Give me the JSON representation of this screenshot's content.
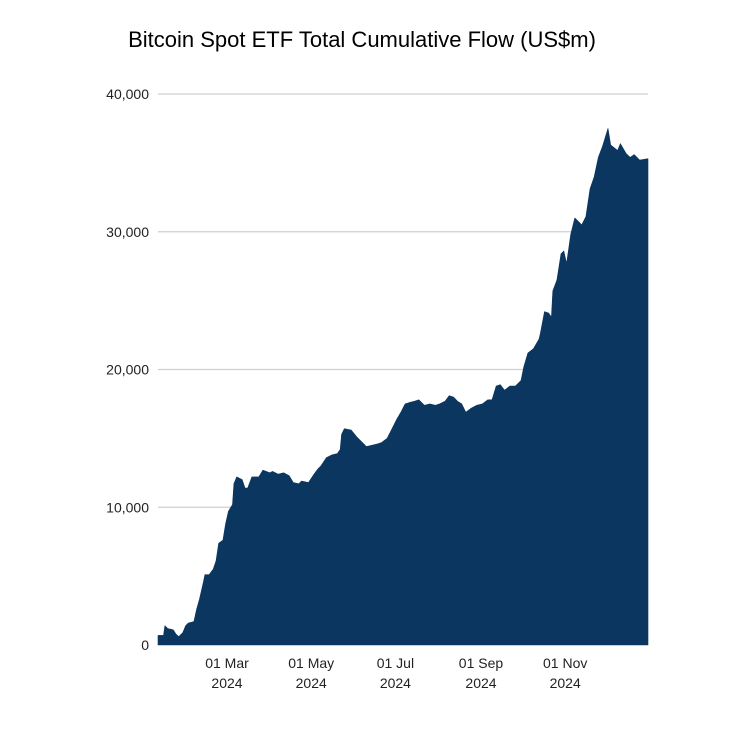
{
  "chart_data": {
    "type": "area",
    "title": "Bitcoin Spot ETF Total Cumulative Flow (US$m)",
    "xlabel": "",
    "ylabel": "",
    "ylim": [
      0,
      40000
    ],
    "xlim": [
      "2024-01-11",
      "2024-12-31"
    ],
    "y_ticks": [
      {
        "value": 0,
        "label": "0"
      },
      {
        "value": 10000,
        "label": "10,000"
      },
      {
        "value": 20000,
        "label": "20,000"
      },
      {
        "value": 30000,
        "label": "30,000"
      },
      {
        "value": 40000,
        "label": "40,000"
      }
    ],
    "x_ticks": [
      {
        "date": "2024-03-01",
        "line1": "01 Mar",
        "line2": "2024"
      },
      {
        "date": "2024-05-01",
        "line1": "01 May",
        "line2": "2024"
      },
      {
        "date": "2024-07-01",
        "line1": "01 Jul",
        "line2": "2024"
      },
      {
        "date": "2024-09-01",
        "line1": "01 Sep",
        "line2": "2024"
      },
      {
        "date": "2024-11-01",
        "line1": "01 Nov",
        "line2": "2024"
      }
    ],
    "grid": true,
    "legend": "none",
    "fill_color": "#0a3660",
    "series": [
      {
        "name": "Total Cumulative Flow",
        "points": [
          [
            "2024-01-11",
            700
          ],
          [
            "2024-01-15",
            700
          ],
          [
            "2024-01-16",
            1400
          ],
          [
            "2024-01-18",
            1200
          ],
          [
            "2024-01-22",
            1100
          ],
          [
            "2024-01-24",
            800
          ],
          [
            "2024-01-26",
            600
          ],
          [
            "2024-01-29",
            900
          ],
          [
            "2024-01-31",
            1400
          ],
          [
            "2024-02-02",
            1600
          ],
          [
            "2024-02-06",
            1700
          ],
          [
            "2024-02-08",
            2600
          ],
          [
            "2024-02-10",
            3300
          ],
          [
            "2024-02-13",
            4600
          ],
          [
            "2024-02-14",
            5100
          ],
          [
            "2024-02-17",
            5100
          ],
          [
            "2024-02-20",
            5500
          ],
          [
            "2024-02-22",
            6100
          ],
          [
            "2024-02-24",
            7400
          ],
          [
            "2024-02-27",
            7600
          ],
          [
            "2024-02-29",
            8800
          ],
          [
            "2024-03-02",
            9700
          ],
          [
            "2024-03-05",
            10200
          ],
          [
            "2024-03-06",
            11700
          ],
          [
            "2024-03-08",
            12200
          ],
          [
            "2024-03-12",
            12000
          ],
          [
            "2024-03-14",
            11400
          ],
          [
            "2024-03-16",
            11400
          ],
          [
            "2024-03-19",
            12200
          ],
          [
            "2024-03-24",
            12200
          ],
          [
            "2024-03-27",
            12700
          ],
          [
            "2024-04-01",
            12500
          ],
          [
            "2024-04-03",
            12600
          ],
          [
            "2024-04-07",
            12400
          ],
          [
            "2024-04-11",
            12500
          ],
          [
            "2024-04-15",
            12300
          ],
          [
            "2024-04-18",
            11800
          ],
          [
            "2024-04-22",
            11700
          ],
          [
            "2024-04-24",
            11900
          ],
          [
            "2024-04-29",
            11800
          ],
          [
            "2024-05-03",
            12400
          ],
          [
            "2024-05-06",
            12800
          ],
          [
            "2024-05-08",
            13000
          ],
          [
            "2024-05-12",
            13600
          ],
          [
            "2024-05-16",
            13800
          ],
          [
            "2024-05-20",
            13900
          ],
          [
            "2024-05-22",
            14200
          ],
          [
            "2024-05-23",
            15300
          ],
          [
            "2024-05-25",
            15700
          ],
          [
            "2024-05-30",
            15600
          ],
          [
            "2024-06-03",
            15100
          ],
          [
            "2024-06-07",
            14700
          ],
          [
            "2024-06-10",
            14400
          ],
          [
            "2024-06-14",
            14500
          ],
          [
            "2024-06-18",
            14600
          ],
          [
            "2024-06-21",
            14700
          ],
          [
            "2024-06-25",
            15000
          ],
          [
            "2024-06-28",
            15600
          ],
          [
            "2024-07-02",
            16400
          ],
          [
            "2024-07-05",
            16900
          ],
          [
            "2024-07-08",
            17500
          ],
          [
            "2024-07-11",
            17600
          ],
          [
            "2024-07-15",
            17700
          ],
          [
            "2024-07-18",
            17800
          ],
          [
            "2024-07-22",
            17400
          ],
          [
            "2024-07-26",
            17500
          ],
          [
            "2024-07-30",
            17400
          ],
          [
            "2024-08-02",
            17500
          ],
          [
            "2024-08-06",
            17700
          ],
          [
            "2024-08-09",
            18100
          ],
          [
            "2024-08-12",
            18000
          ],
          [
            "2024-08-15",
            17700
          ],
          [
            "2024-08-18",
            17500
          ],
          [
            "2024-08-21",
            16900
          ],
          [
            "2024-08-25",
            17200
          ],
          [
            "2024-08-29",
            17400
          ],
          [
            "2024-09-02",
            17500
          ],
          [
            "2024-09-06",
            17800
          ],
          [
            "2024-09-09",
            17800
          ],
          [
            "2024-09-12",
            18800
          ],
          [
            "2024-09-15",
            18900
          ],
          [
            "2024-09-18",
            18500
          ],
          [
            "2024-09-22",
            18800
          ],
          [
            "2024-09-26",
            18800
          ],
          [
            "2024-09-30",
            19200
          ],
          [
            "2024-10-02",
            20200
          ],
          [
            "2024-10-05",
            21200
          ],
          [
            "2024-10-09",
            21500
          ],
          [
            "2024-10-13",
            22200
          ],
          [
            "2024-10-14",
            22600
          ],
          [
            "2024-10-17",
            24200
          ],
          [
            "2024-10-20",
            24100
          ],
          [
            "2024-10-22",
            23800
          ],
          [
            "2024-10-23",
            25700
          ],
          [
            "2024-10-26",
            26500
          ],
          [
            "2024-10-29",
            28400
          ],
          [
            "2024-10-31",
            28600
          ],
          [
            "2024-11-02",
            27700
          ],
          [
            "2024-11-05",
            29800
          ],
          [
            "2024-11-08",
            31000
          ],
          [
            "2024-11-11",
            30700
          ],
          [
            "2024-11-13",
            30500
          ],
          [
            "2024-11-16",
            31100
          ],
          [
            "2024-11-19",
            33100
          ],
          [
            "2024-11-22",
            34000
          ],
          [
            "2024-11-25",
            35400
          ],
          [
            "2024-11-28",
            36200
          ],
          [
            "2024-12-02",
            37500
          ],
          [
            "2024-12-04",
            36300
          ],
          [
            "2024-12-09",
            35900
          ],
          [
            "2024-12-11",
            36400
          ],
          [
            "2024-12-15",
            35700
          ],
          [
            "2024-12-18",
            35400
          ],
          [
            "2024-12-21",
            35600
          ],
          [
            "2024-12-25",
            35200
          ],
          [
            "2024-12-31",
            35300
          ]
        ]
      }
    ]
  }
}
